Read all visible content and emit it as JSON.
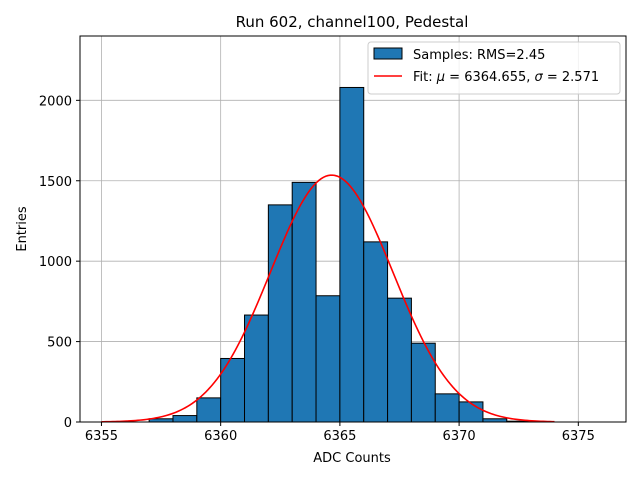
{
  "chart_data": {
    "type": "bar",
    "title": "Run 602, channel100, Pedestal",
    "xlabel": "ADC Counts",
    "ylabel": "Entries",
    "xlim": [
      6354.1,
      6377.0
    ],
    "ylim": [
      0,
      2400
    ],
    "xticks": [
      6355,
      6360,
      6365,
      6370,
      6375
    ],
    "yticks": [
      0,
      500,
      1000,
      1500,
      2000
    ],
    "grid": true,
    "legend_position": "top-right",
    "colors": {
      "bar_fill": "#1f77b4",
      "bar_edge": "#000000",
      "fit_line": "#ff0000",
      "grid": "#b0b0b0"
    },
    "histogram": {
      "name": "Samples: RMS=2.45",
      "bin_width": 1,
      "bins": [
        {
          "left": 6357,
          "count": 20
        },
        {
          "left": 6358,
          "count": 40
        },
        {
          "left": 6359,
          "count": 150
        },
        {
          "left": 6360,
          "count": 395
        },
        {
          "left": 6361,
          "count": 665
        },
        {
          "left": 6362,
          "count": 1350
        },
        {
          "left": 6363,
          "count": 1490
        },
        {
          "left": 6364,
          "count": 785
        },
        {
          "left": 6365,
          "count": 2080
        },
        {
          "left": 6366,
          "count": 1120
        },
        {
          "left": 6367,
          "count": 770
        },
        {
          "left": 6368,
          "count": 490
        },
        {
          "left": 6369,
          "count": 175
        },
        {
          "left": 6370,
          "count": 125
        },
        {
          "left": 6371,
          "count": 20
        },
        {
          "left": 6372,
          "count": 5
        }
      ]
    },
    "fit": {
      "name_prefix": "Fit: ",
      "mu_symbol": "μ",
      "mu_text": " = 6364.655, ",
      "sigma_symbol": "σ",
      "sigma_text": " = 2.571",
      "mu": 6364.655,
      "sigma": 2.571,
      "amplitude": 1535,
      "x_range": [
        6355,
        6374
      ]
    }
  }
}
